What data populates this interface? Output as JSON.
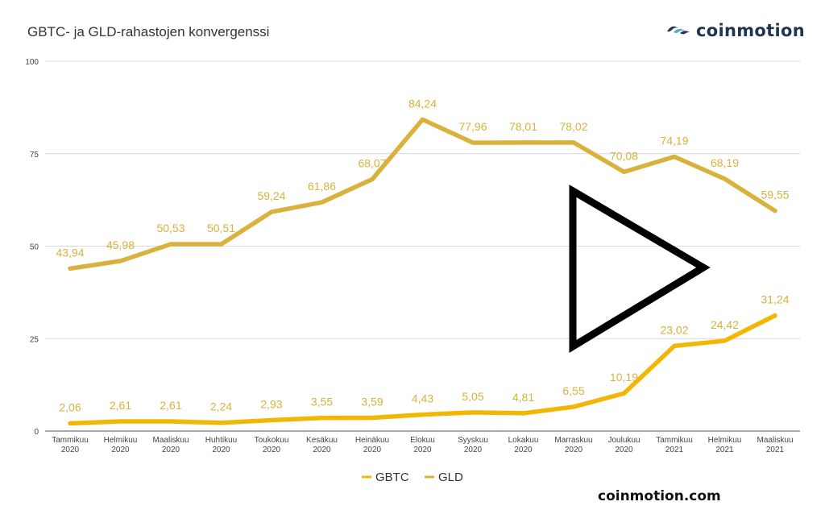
{
  "chart_title": "GBTC- ja GLD-rahastojen konvergenssi",
  "logo": {
    "text": "coinmotion"
  },
  "footer": {
    "url": "coinmotion.com"
  },
  "play_icon": "play-triangle-icon",
  "colors": {
    "gbtc": "#f2b705",
    "gld": "#d8b23c",
    "grid": "#d9d9d9",
    "labels": "#d8b23c",
    "logo": "#1f3552"
  },
  "chart_data": {
    "type": "line",
    "title": "GBTC- ja GLD-rahastojen konvergenssi",
    "categories": [
      [
        "Tammikuu",
        "2020"
      ],
      [
        "Helmikuu",
        "2020"
      ],
      [
        "Maaliskuu",
        "2020"
      ],
      [
        "Huhtikuu",
        "2020"
      ],
      [
        "Toukokuu",
        "2020"
      ],
      [
        "Kesäkuu",
        "2020"
      ],
      [
        "Heinäkuu",
        "2020"
      ],
      [
        "Elokuu",
        "2020"
      ],
      [
        "Syyskuu",
        "2020"
      ],
      [
        "Lokakuu",
        "2020"
      ],
      [
        "Marraskuu",
        "2020"
      ],
      [
        "Joulukuu",
        "2020"
      ],
      [
        "Tammikuu",
        "2021"
      ],
      [
        "Helmikuu",
        "2021"
      ],
      [
        "Maaliskuu",
        "2021"
      ]
    ],
    "series": [
      {
        "name": "GBTC",
        "values": [
          2.06,
          2.61,
          2.61,
          2.24,
          2.93,
          3.55,
          3.59,
          4.43,
          5.05,
          4.81,
          6.55,
          10.19,
          23.02,
          24.42,
          31.24
        ],
        "labels": [
          "2,06",
          "2,61",
          "2,61",
          "2,24",
          "2,93",
          "3,55",
          "3,59",
          "4,43",
          "5,05",
          "4,81",
          "6,55",
          "10,19",
          "23,02",
          "24,42",
          "31,24"
        ]
      },
      {
        "name": "GLD",
        "values": [
          43.94,
          45.98,
          50.53,
          50.51,
          59.24,
          61.86,
          68.07,
          84.24,
          77.96,
          78.01,
          78.02,
          70.08,
          74.19,
          68.19,
          59.55
        ],
        "labels": [
          "43,94",
          "45,98",
          "50,53",
          "50,51",
          "59,24",
          "61,86",
          "68,07",
          "84,24",
          "77,96",
          "78,01",
          "78,02",
          "70,08",
          "74,19",
          "68,19",
          "59,55"
        ]
      }
    ],
    "yticks": [
      0,
      25,
      50,
      75,
      100
    ],
    "ylim": [
      0,
      100
    ],
    "grid": true,
    "legend": "bottom-center"
  }
}
